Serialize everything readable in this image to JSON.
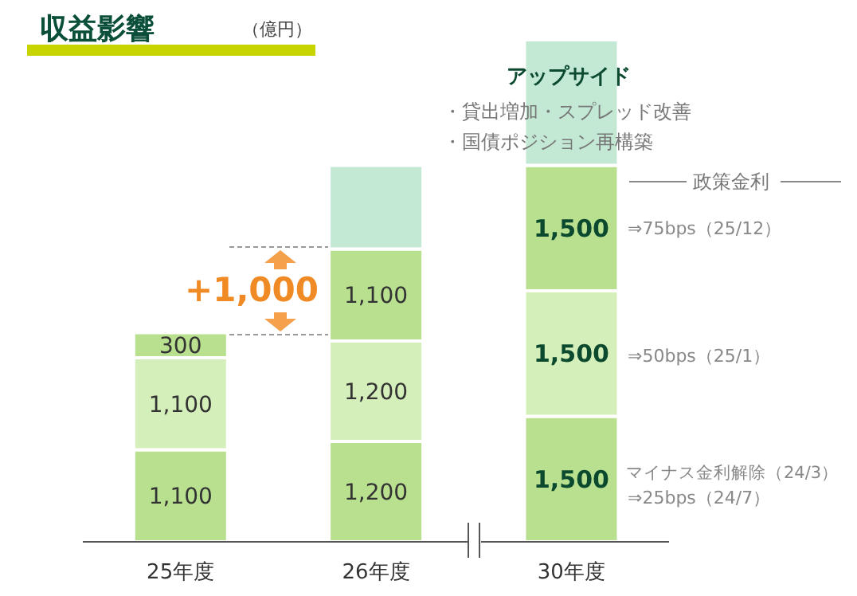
{
  "chart_data": {
    "type": "bar",
    "stacked": true,
    "title": "収益影響",
    "subtitle": "（億円）",
    "categories": [
      "25年度",
      "26年度",
      "30年度"
    ],
    "series": [
      {
        "color": "#b8e08f",
        "values": [
          1100,
          1200,
          1500
        ],
        "value_labels": [
          "1,100",
          "1,200",
          "1,500"
        ]
      },
      {
        "color": "#d5efbb",
        "values": [
          1100,
          1200,
          1500
        ],
        "value_labels": [
          "1,100",
          "1,200",
          "1,500"
        ]
      },
      {
        "color": "#b8e08f",
        "values": [
          300,
          1100,
          1500
        ],
        "value_labels": [
          "300",
          "1,100",
          "1,500"
        ]
      },
      {
        "color": "#c3e9d5",
        "values": [
          null,
          1000,
          1500
        ],
        "value_labels": [
          null,
          null,
          null
        ]
      }
    ],
    "annotations": [
      "+1,000",
      "アップサイド",
      "・貸出増加・スプレッド改善",
      "・国債ポジション再構築",
      "政策金利",
      "⇒75bps（25/12）",
      "⇒50bps（25/1）",
      "マイナス金利解除（24/3）",
      "⇒25bps（24/7）"
    ],
    "grid": false,
    "legend": false
  }
}
